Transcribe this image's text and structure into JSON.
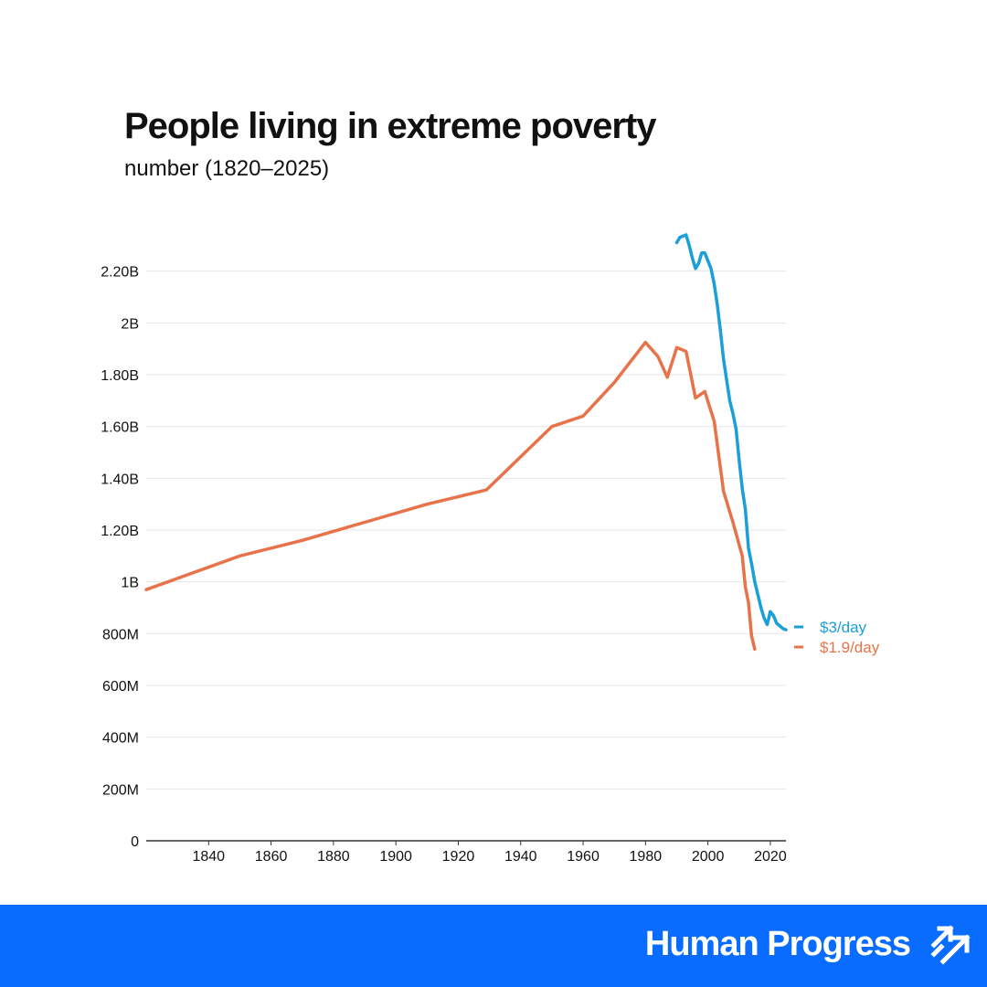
{
  "chart_data": {
    "type": "line",
    "title": "People living in extreme poverty",
    "subtitle": "number (1820–2025)",
    "xlabel": "",
    "ylabel": "",
    "xlim": [
      1820,
      2025
    ],
    "ylim": [
      0,
      2400000000
    ],
    "x_ticks": [
      1840,
      1860,
      1880,
      1900,
      1920,
      1940,
      1960,
      1980,
      2000,
      2020
    ],
    "y_ticks": [
      {
        "value": 0,
        "label": "0"
      },
      {
        "value": 200000000,
        "label": "200M"
      },
      {
        "value": 400000000,
        "label": "400M"
      },
      {
        "value": 600000000,
        "label": "600M"
      },
      {
        "value": 800000000,
        "label": "800M"
      },
      {
        "value": 1000000000,
        "label": "1B"
      },
      {
        "value": 1200000000,
        "label": "1.20B"
      },
      {
        "value": 1400000000,
        "label": "1.40B"
      },
      {
        "value": 1600000000,
        "label": "1.60B"
      },
      {
        "value": 1800000000,
        "label": "1.80B"
      },
      {
        "value": 2000000000,
        "label": "2B"
      },
      {
        "value": 2200000000,
        "label": "2.20B"
      }
    ],
    "grid": true,
    "series": [
      {
        "name": "$1.9/day",
        "color": "#e8734a",
        "x": [
          1820,
          1850,
          1870,
          1890,
          1910,
          1929,
          1950,
          1960,
          1970,
          1980,
          1984,
          1987,
          1990,
          1993,
          1996,
          1999,
          2002,
          2005,
          2008,
          2011,
          2012,
          2013,
          2014,
          2015
        ],
        "y": [
          970000000,
          1100000000,
          1160000000,
          1230000000,
          1300000000,
          1355000000,
          1600000000,
          1640000000,
          1770000000,
          1925000000,
          1870000000,
          1790000000,
          1905000000,
          1890000000,
          1710000000,
          1735000000,
          1620000000,
          1350000000,
          1230000000,
          1100000000,
          980000000,
          920000000,
          790000000,
          740000000
        ]
      },
      {
        "name": "$3/day",
        "color": "#1a9fd8",
        "x": [
          1990,
          1991,
          1992,
          1993,
          1994,
          1995,
          1996,
          1997,
          1998,
          1999,
          2000,
          2001,
          2002,
          2003,
          2004,
          2005,
          2006,
          2007,
          2008,
          2009,
          2010,
          2011,
          2012,
          2013,
          2014,
          2015,
          2016,
          2017,
          2018,
          2019,
          2020,
          2021,
          2022,
          2023,
          2024,
          2025
        ],
        "y": [
          2310000000,
          2330000000,
          2335000000,
          2340000000,
          2300000000,
          2250000000,
          2210000000,
          2230000000,
          2270000000,
          2270000000,
          2240000000,
          2210000000,
          2150000000,
          2070000000,
          1970000000,
          1860000000,
          1780000000,
          1700000000,
          1650000000,
          1590000000,
          1470000000,
          1360000000,
          1280000000,
          1130000000,
          1070000000,
          1000000000,
          950000000,
          900000000,
          860000000,
          835000000,
          885000000,
          870000000,
          840000000,
          830000000,
          820000000,
          815000000
        ]
      }
    ]
  },
  "footer": {
    "brand": "Human Progress",
    "background": "#0a6cff"
  }
}
